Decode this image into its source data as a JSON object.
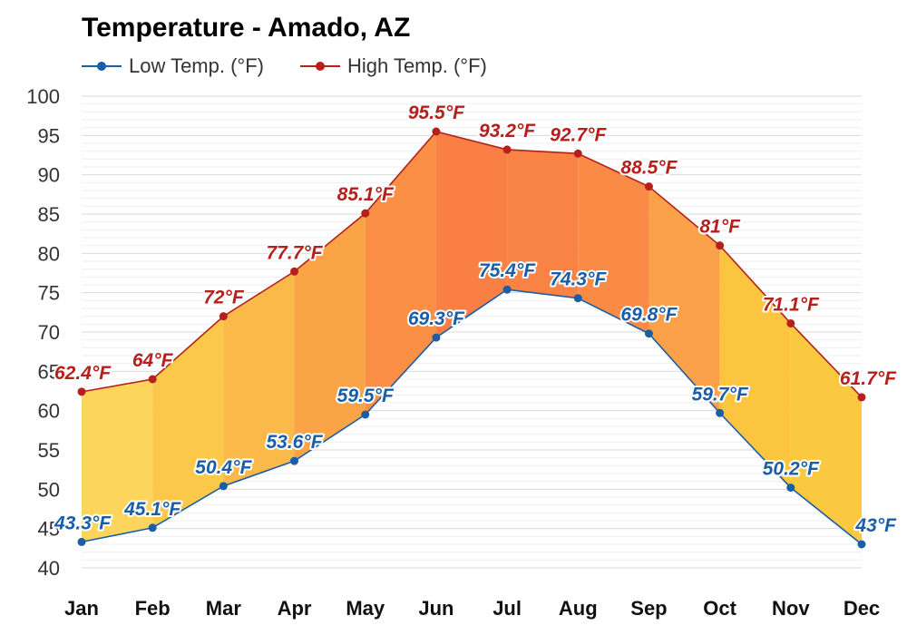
{
  "chart_data": {
    "type": "line",
    "title": "Temperature - Amado, AZ",
    "xlabel": "",
    "ylabel": "",
    "categories": [
      "Jan",
      "Feb",
      "Mar",
      "Apr",
      "May",
      "Jun",
      "Jul",
      "Aug",
      "Sep",
      "Oct",
      "Nov",
      "Dec"
    ],
    "series": [
      {
        "name": "Low Temp. (°F)",
        "color": "#1a5ea8",
        "values": [
          43.3,
          45.1,
          50.4,
          53.6,
          59.5,
          69.3,
          75.4,
          74.3,
          69.8,
          59.7,
          50.2,
          43.0
        ],
        "labels": [
          "43.3°F",
          "45.1°F",
          "50.4°F",
          "53.6°F",
          "59.5°F",
          "69.3°F",
          "75.4°F",
          "74.3°F",
          "69.8°F",
          "59.7°F",
          "50.2°F",
          "43°F"
        ]
      },
      {
        "name": "High Temp. (°F)",
        "color": "#b5201c",
        "values": [
          62.4,
          64.0,
          72.0,
          77.7,
          85.1,
          95.5,
          93.2,
          92.7,
          88.5,
          81.0,
          71.1,
          61.7
        ],
        "labels": [
          "62.4°F",
          "64°F",
          "72°F",
          "77.7°F",
          "85.1°F",
          "95.5°F",
          "93.2°F",
          "92.7°F",
          "88.5°F",
          "81°F",
          "71.1°F",
          "61.7°F"
        ]
      }
    ],
    "band_fill_colors": [
      "#fdd55c",
      "#fcc84a",
      "#fbb94a",
      "#fba447",
      "#fb8f45",
      "#f97f44",
      "#f98245",
      "#fa8b46",
      "#fba14a",
      "#fcc540",
      "#fbc93f",
      "#fde48c"
    ],
    "ylim": [
      40,
      100
    ],
    "yticks": [
      40,
      45,
      50,
      55,
      60,
      65,
      70,
      75,
      80,
      85,
      90,
      95,
      100
    ],
    "grid": true,
    "legend_position": "top-left"
  }
}
